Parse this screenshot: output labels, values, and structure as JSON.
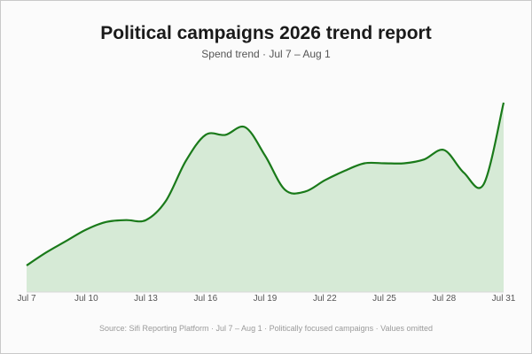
{
  "header": {
    "title": "Political campaigns 2026 trend report",
    "subtitle": "Spend trend · Jul 7 – Aug 1"
  },
  "footer": {
    "source": "Source: Sifi Reporting Platform · Jul 7 – Aug 1 · Politically focused campaigns · Values omitted"
  },
  "colors": {
    "line": "#1a7a1a",
    "fill": "#d6ead6"
  },
  "chart_data": {
    "type": "area",
    "title": "Political campaigns 2026 trend report",
    "subtitle": "Spend trend · Jul 7 – Aug 1",
    "xlabel": "",
    "ylabel": "",
    "y_axis_values_shown": false,
    "grid": false,
    "legend": "none",
    "x": [
      "Jul 7",
      "Jul 8",
      "Jul 9",
      "Jul 10",
      "Jul 11",
      "Jul 12",
      "Jul 13",
      "Jul 14",
      "Jul 15",
      "Jul 16",
      "Jul 17",
      "Jul 18",
      "Jul 19",
      "Jul 20",
      "Jul 21",
      "Jul 22",
      "Jul 23",
      "Jul 24",
      "Jul 25",
      "Jul 26",
      "Jul 27",
      "Jul 28",
      "Jul 29",
      "Jul 30",
      "Jul 31"
    ],
    "x_ticks": [
      "Jul 7",
      "Jul 10",
      "Jul 13",
      "Jul 16",
      "Jul 19",
      "Jul 22",
      "Jul 25",
      "Jul 28",
      "Jul 31"
    ],
    "values": [
      14,
      21,
      27,
      33,
      37,
      38,
      38,
      48,
      69,
      83,
      83,
      87,
      72,
      54,
      53,
      59,
      64,
      68,
      68,
      68,
      70,
      75,
      63,
      57,
      100
    ],
    "ylim": [
      0,
      100
    ]
  }
}
